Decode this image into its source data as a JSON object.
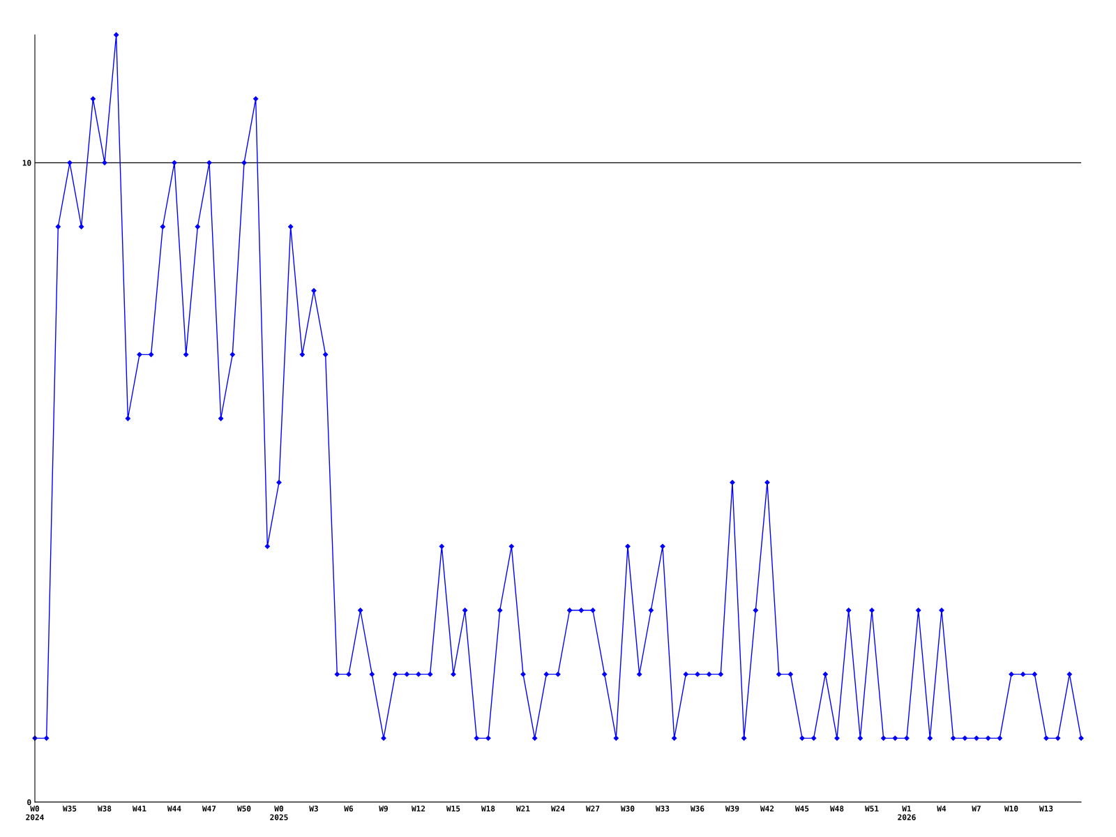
{
  "chart_data": {
    "type": "line",
    "categories": [
      "W0\n2024",
      null,
      null,
      "W35",
      null,
      null,
      "W38",
      null,
      null,
      "W41",
      null,
      null,
      "W44",
      null,
      null,
      "W47",
      null,
      null,
      "W50",
      null,
      null,
      "W0\n2025",
      null,
      null,
      "W3",
      null,
      null,
      "W6",
      null,
      null,
      "W9",
      null,
      null,
      "W12",
      null,
      null,
      "W15",
      null,
      null,
      "W18",
      null,
      null,
      "W21",
      null,
      null,
      "W24",
      null,
      null,
      "W27",
      null,
      null,
      "W30",
      null,
      null,
      "W33",
      null,
      null,
      "W36",
      null,
      null,
      "W39",
      null,
      null,
      "W42",
      null,
      null,
      "W45",
      null,
      null,
      "W48",
      null,
      null,
      "W51",
      null,
      null,
      "W1\n2026",
      null,
      null,
      "W4",
      null,
      null,
      "W7",
      null,
      null,
      "W10",
      null,
      null,
      "W13",
      null,
      null,
      null
    ],
    "series": [
      {
        "color": "#0000ff",
        "values": [
          1,
          1,
          9,
          10,
          9,
          11,
          10,
          12,
          6,
          7,
          7,
          9,
          10,
          7,
          9,
          10,
          6,
          7,
          10,
          11,
          4,
          5,
          9,
          7,
          8,
          7,
          2,
          2,
          3,
          2,
          1,
          2,
          2,
          2,
          2,
          4,
          2,
          3,
          1,
          1,
          3,
          4,
          2,
          1,
          2,
          2,
          3,
          3,
          3,
          2,
          1,
          4,
          2,
          3,
          4,
          1,
          2,
          2,
          2,
          2,
          5,
          1,
          3,
          5,
          2,
          2,
          1,
          1,
          2,
          1,
          3,
          1,
          3,
          1,
          1,
          1,
          3,
          1,
          3,
          1,
          1,
          1,
          1,
          1,
          2,
          2,
          2,
          1,
          1,
          2,
          1
        ]
      }
    ],
    "ylim": [
      0,
      12
    ],
    "yticks": [
      0,
      10
    ],
    "grid": "y",
    "marker": "diamond",
    "line_style": "solid"
  }
}
